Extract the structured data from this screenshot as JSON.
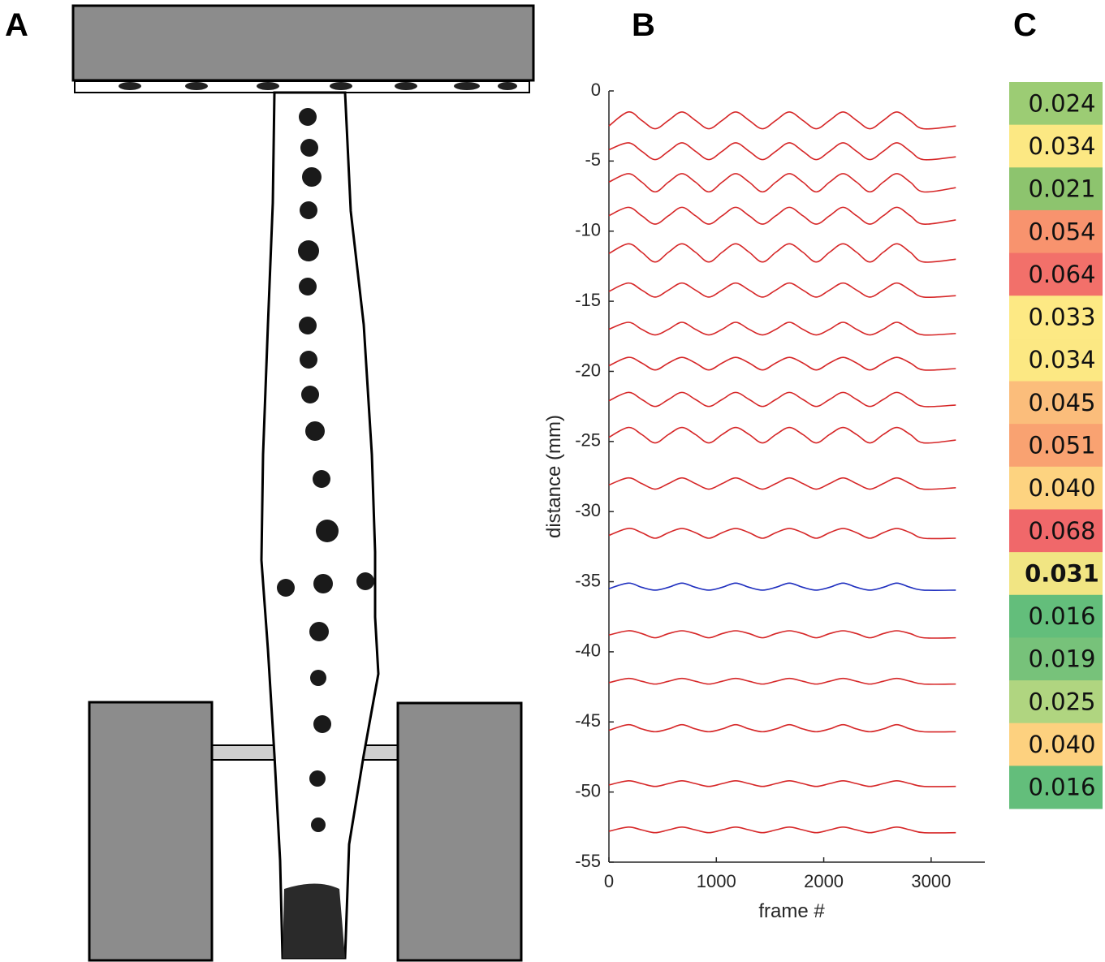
{
  "labels": [
    "A",
    "B",
    "C"
  ],
  "chart_data": {
    "type": "line",
    "xlabel": "frame #",
    "ylabel": "distance (mm)",
    "x": [
      0,
      180,
      305,
      430,
      555,
      680,
      805,
      930,
      1055,
      1180,
      1305,
      1430,
      1555,
      1680,
      1805,
      1930,
      2055,
      2180,
      2305,
      2430,
      2555,
      2680,
      2805,
      2930,
      3230
    ],
    "xlim": [
      0,
      3500
    ],
    "xticks": [
      0,
      1000,
      2000,
      3000
    ],
    "ylim": [
      -55,
      0
    ],
    "yticks": [
      0,
      -5,
      -10,
      -15,
      -20,
      -25,
      -30,
      -35,
      -40,
      -45,
      -50,
      -55
    ],
    "series": [
      {
        "color": "#d62728",
        "values": [
          -2.5,
          -1.5,
          -2.1,
          -2.7,
          -2.1,
          -1.5,
          -2.1,
          -2.7,
          -2.1,
          -1.5,
          -2.1,
          -2.7,
          -2.1,
          -1.5,
          -2.1,
          -2.7,
          -2.1,
          -1.5,
          -2.1,
          -2.7,
          -2.1,
          -1.5,
          -2.1,
          -2.7,
          -2.5
        ]
      },
      {
        "color": "#d62728",
        "values": [
          -4.2,
          -3.7,
          -4.3,
          -4.9,
          -4.3,
          -3.7,
          -4.3,
          -4.9,
          -4.3,
          -3.7,
          -4.3,
          -4.9,
          -4.3,
          -3.7,
          -4.3,
          -4.9,
          -4.3,
          -3.7,
          -4.3,
          -4.9,
          -4.3,
          -3.7,
          -4.3,
          -4.9,
          -4.7
        ]
      },
      {
        "color": "#d62728",
        "values": [
          -6.5,
          -5.9,
          -6.5,
          -7.2,
          -6.5,
          -5.9,
          -6.5,
          -7.2,
          -6.5,
          -5.9,
          -6.5,
          -7.2,
          -6.5,
          -5.9,
          -6.5,
          -7.2,
          -6.5,
          -5.9,
          -6.5,
          -7.2,
          -6.5,
          -5.9,
          -6.5,
          -7.2,
          -6.9
        ]
      },
      {
        "color": "#d62728",
        "values": [
          -8.9,
          -8.3,
          -8.9,
          -9.5,
          -8.9,
          -8.3,
          -8.9,
          -9.5,
          -8.9,
          -8.3,
          -8.9,
          -9.5,
          -8.9,
          -8.3,
          -8.9,
          -9.5,
          -8.9,
          -8.3,
          -8.9,
          -9.5,
          -8.9,
          -8.3,
          -8.9,
          -9.5,
          -9.2
        ]
      },
      {
        "color": "#d62728",
        "values": [
          -11.6,
          -10.9,
          -11.5,
          -12.2,
          -11.5,
          -10.9,
          -11.5,
          -12.2,
          -11.5,
          -10.9,
          -11.5,
          -12.2,
          -11.5,
          -10.9,
          -11.5,
          -12.2,
          -11.5,
          -10.9,
          -11.5,
          -12.2,
          -11.5,
          -10.9,
          -11.5,
          -12.2,
          -12.0
        ]
      },
      {
        "color": "#d62728",
        "values": [
          -14.3,
          -13.7,
          -14.2,
          -14.7,
          -14.2,
          -13.7,
          -14.2,
          -14.7,
          -14.2,
          -13.7,
          -14.2,
          -14.7,
          -14.2,
          -13.7,
          -14.2,
          -14.7,
          -14.2,
          -13.7,
          -14.2,
          -14.7,
          -14.2,
          -13.7,
          -14.2,
          -14.7,
          -14.6
        ]
      },
      {
        "color": "#d62728",
        "values": [
          -17.0,
          -16.5,
          -17.0,
          -17.4,
          -17.0,
          -16.5,
          -17.0,
          -17.4,
          -17.0,
          -16.5,
          -17.0,
          -17.4,
          -17.0,
          -16.5,
          -17.0,
          -17.4,
          -17.0,
          -16.5,
          -17.0,
          -17.4,
          -17.0,
          -16.5,
          -17.0,
          -17.4,
          -17.3
        ]
      },
      {
        "color": "#d62728",
        "values": [
          -19.6,
          -19.0,
          -19.4,
          -19.9,
          -19.4,
          -19.0,
          -19.4,
          -19.9,
          -19.4,
          -19.0,
          -19.4,
          -19.9,
          -19.4,
          -19.0,
          -19.4,
          -19.9,
          -19.4,
          -19.0,
          -19.4,
          -19.9,
          -19.4,
          -19.0,
          -19.4,
          -19.9,
          -19.8
        ]
      },
      {
        "color": "#d62728",
        "values": [
          -22.1,
          -21.5,
          -22.0,
          -22.5,
          -22.0,
          -21.5,
          -22.0,
          -22.5,
          -22.0,
          -21.5,
          -22.0,
          -22.5,
          -22.0,
          -21.5,
          -22.0,
          -22.5,
          -22.0,
          -21.5,
          -22.0,
          -22.5,
          -22.0,
          -21.5,
          -22.0,
          -22.5,
          -22.4
        ]
      },
      {
        "color": "#d62728",
        "values": [
          -24.7,
          -24.0,
          -24.5,
          -25.1,
          -24.5,
          -24.0,
          -24.5,
          -25.1,
          -24.5,
          -24.0,
          -24.5,
          -25.1,
          -24.5,
          -24.0,
          -24.5,
          -25.1,
          -24.5,
          -24.0,
          -24.5,
          -25.1,
          -24.5,
          -24.0,
          -24.5,
          -25.1,
          -24.9
        ]
      },
      {
        "color": "#d62728",
        "values": [
          -28.1,
          -27.6,
          -28.0,
          -28.4,
          -28.0,
          -27.6,
          -28.0,
          -28.4,
          -28.0,
          -27.6,
          -28.0,
          -28.4,
          -28.0,
          -27.6,
          -28.0,
          -28.4,
          -28.0,
          -27.6,
          -28.0,
          -28.4,
          -28.0,
          -27.6,
          -28.0,
          -28.4,
          -28.3
        ]
      },
      {
        "color": "#d62728",
        "values": [
          -31.7,
          -31.2,
          -31.5,
          -31.9,
          -31.5,
          -31.2,
          -31.5,
          -31.9,
          -31.5,
          -31.2,
          -31.5,
          -31.9,
          -31.5,
          -31.2,
          -31.5,
          -31.9,
          -31.5,
          -31.2,
          -31.5,
          -31.9,
          -31.5,
          -31.2,
          -31.5,
          -31.9,
          -31.9
        ]
      },
      {
        "color": "#1f2fbf",
        "values": [
          -35.5,
          -35.1,
          -35.4,
          -35.6,
          -35.4,
          -35.1,
          -35.4,
          -35.6,
          -35.4,
          -35.1,
          -35.4,
          -35.6,
          -35.4,
          -35.1,
          -35.4,
          -35.6,
          -35.4,
          -35.1,
          -35.4,
          -35.6,
          -35.4,
          -35.1,
          -35.4,
          -35.6,
          -35.6
        ]
      },
      {
        "color": "#d62728",
        "values": [
          -38.8,
          -38.5,
          -38.7,
          -39.0,
          -38.7,
          -38.5,
          -38.7,
          -39.0,
          -38.7,
          -38.5,
          -38.7,
          -39.0,
          -38.7,
          -38.5,
          -38.7,
          -39.0,
          -38.7,
          -38.5,
          -38.7,
          -39.0,
          -38.7,
          -38.5,
          -38.7,
          -39.0,
          -39.0
        ]
      },
      {
        "color": "#d62728",
        "values": [
          -42.2,
          -41.9,
          -42.1,
          -42.3,
          -42.1,
          -41.9,
          -42.1,
          -42.3,
          -42.1,
          -41.9,
          -42.1,
          -42.3,
          -42.1,
          -41.9,
          -42.1,
          -42.3,
          -42.1,
          -41.9,
          -42.1,
          -42.3,
          -42.1,
          -41.9,
          -42.1,
          -42.3,
          -42.3
        ]
      },
      {
        "color": "#d62728",
        "values": [
          -45.6,
          -45.2,
          -45.5,
          -45.7,
          -45.5,
          -45.2,
          -45.5,
          -45.7,
          -45.5,
          -45.2,
          -45.5,
          -45.7,
          -45.5,
          -45.2,
          -45.5,
          -45.7,
          -45.5,
          -45.2,
          -45.5,
          -45.7,
          -45.5,
          -45.2,
          -45.5,
          -45.7,
          -45.7
        ]
      },
      {
        "color": "#d62728",
        "values": [
          -49.5,
          -49.2,
          -49.4,
          -49.6,
          -49.4,
          -49.2,
          -49.4,
          -49.6,
          -49.4,
          -49.2,
          -49.4,
          -49.6,
          -49.4,
          -49.2,
          -49.4,
          -49.6,
          -49.4,
          -49.2,
          -49.4,
          -49.6,
          -49.4,
          -49.2,
          -49.4,
          -49.6,
          -49.6
        ]
      },
      {
        "color": "#d62728",
        "values": [
          -52.8,
          -52.5,
          -52.7,
          -52.9,
          -52.7,
          -52.5,
          -52.7,
          -52.9,
          -52.7,
          -52.5,
          -52.7,
          -52.9,
          -52.7,
          -52.5,
          -52.7,
          -52.9,
          -52.7,
          -52.5,
          -52.7,
          -52.9,
          -52.7,
          -52.5,
          -52.7,
          -52.9,
          -52.9
        ]
      }
    ]
  },
  "table": {
    "values": [
      "0.024",
      "0.034",
      "0.021",
      "0.054",
      "0.064",
      "0.033",
      "0.034",
      "0.045",
      "0.051",
      "0.040",
      "0.068",
      "0.031",
      "0.016",
      "0.019",
      "0.025",
      "0.040",
      "0.016"
    ],
    "colors": [
      "#9ccc74",
      "#fce883",
      "#8dc46e",
      "#f8936e",
      "#f2706a",
      "#fde984",
      "#fce883",
      "#fbbd7b",
      "#f9a271",
      "#fdd380",
      "#f0686a",
      "#f1e583",
      "#63be7b",
      "#77c27a",
      "#b0d580",
      "#fdd17f",
      "#63be7b"
    ],
    "bold": [
      11
    ]
  }
}
